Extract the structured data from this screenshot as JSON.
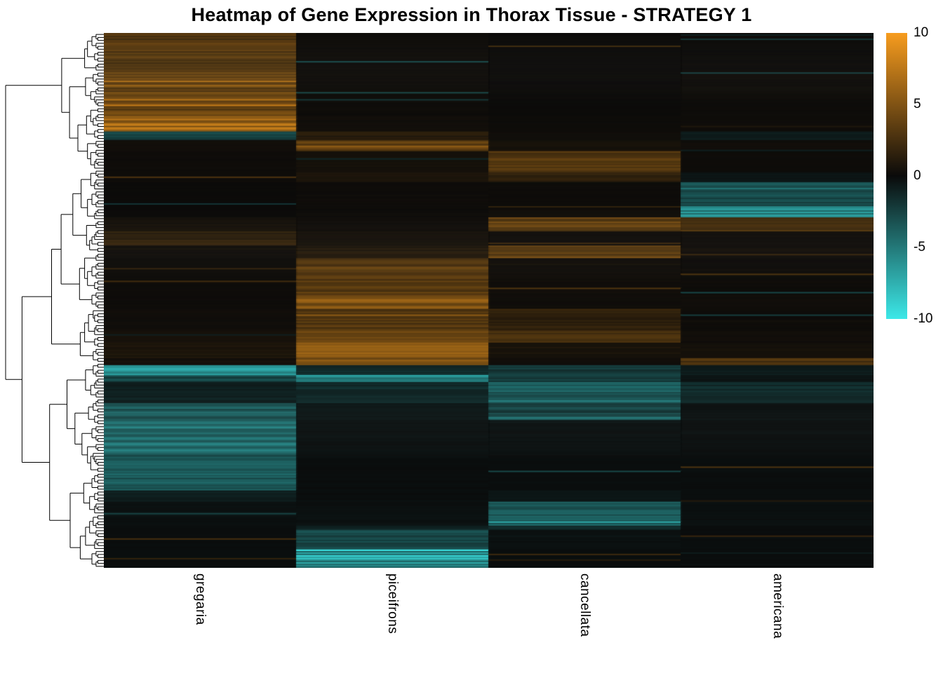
{
  "title": "Heatmap of Gene Expression in Thorax Tissue - STRATEGY 1",
  "colorbar": {
    "ticks": [
      "10",
      "5",
      "0",
      "-5",
      "-10"
    ],
    "tick_values": [
      10,
      5,
      0,
      -5,
      -10
    ],
    "max_color": "#F79C1E",
    "mid_color": "#0a0a0a",
    "min_color": "#3CE8E8"
  },
  "chart_data": {
    "type": "heatmap",
    "title": "Heatmap of Gene Expression in Thorax Tissue - STRATEGY 1",
    "categories": [
      "gregaria",
      "piceifrons",
      "cancellata",
      "americana"
    ],
    "row_axis": "genes (unlabeled, hierarchically clustered with left dendrogram)",
    "value_range": [
      -10,
      10
    ],
    "legend_position": "right",
    "colormap": {
      "negative": "#3CE8E8",
      "zero": "#0a0a0a",
      "positive": "#F79C1E"
    },
    "bands": [
      {
        "y0": 0.0,
        "y1": 0.07,
        "values": [
          3.0,
          0.2,
          0.1,
          0.1
        ]
      },
      {
        "y0": 0.07,
        "y1": 0.155,
        "values": [
          3.8,
          0.2,
          0.1,
          0.2
        ]
      },
      {
        "y0": 0.155,
        "y1": 0.185,
        "values": [
          6.5,
          0.3,
          0.2,
          0.2
        ]
      },
      {
        "y0": 0.185,
        "y1": 0.201,
        "values": [
          -2.5,
          1.2,
          0.3,
          -0.8
        ]
      },
      {
        "y0": 0.201,
        "y1": 0.22,
        "values": [
          0.3,
          3.5,
          0.5,
          0.3
        ]
      },
      {
        "y0": 0.22,
        "y1": 0.26,
        "values": [
          0.2,
          0.5,
          3.0,
          0.2
        ]
      },
      {
        "y0": 0.26,
        "y1": 0.28,
        "values": [
          0.2,
          0.8,
          1.5,
          -0.5
        ]
      },
      {
        "y0": 0.28,
        "y1": 0.325,
        "values": [
          0.1,
          0.2,
          0.2,
          -3.0
        ]
      },
      {
        "y0": 0.325,
        "y1": 0.345,
        "values": [
          0.1,
          0.2,
          0.3,
          -6.0
        ]
      },
      {
        "y0": 0.345,
        "y1": 0.372,
        "values": [
          0.5,
          0.3,
          3.5,
          2.5
        ]
      },
      {
        "y0": 0.372,
        "y1": 0.398,
        "values": [
          1.5,
          0.5,
          0.3,
          0.3
        ]
      },
      {
        "y0": 0.398,
        "y1": 0.42,
        "values": [
          0.3,
          1.0,
          3.8,
          0.3
        ]
      },
      {
        "y0": 0.42,
        "y1": 0.49,
        "values": [
          0.2,
          3.2,
          0.3,
          0.2
        ]
      },
      {
        "y0": 0.49,
        "y1": 0.515,
        "values": [
          0.2,
          4.8,
          0.3,
          0.3
        ]
      },
      {
        "y0": 0.515,
        "y1": 0.555,
        "values": [
          0.3,
          3.0,
          1.5,
          0.2
        ]
      },
      {
        "y0": 0.555,
        "y1": 0.58,
        "values": [
          0.5,
          3.5,
          2.8,
          0.3
        ]
      },
      {
        "y0": 0.58,
        "y1": 0.607,
        "values": [
          0.8,
          5.0,
          0.5,
          0.5
        ]
      },
      {
        "y0": 0.607,
        "y1": 0.62,
        "values": [
          0.5,
          4.5,
          0.3,
          2.8
        ]
      },
      {
        "y0": 0.62,
        "y1": 0.64,
        "values": [
          -7.0,
          -1.5,
          -2.0,
          -0.8
        ]
      },
      {
        "y0": 0.64,
        "y1": 0.653,
        "values": [
          -3.0,
          -6.0,
          -2.5,
          -0.5
        ]
      },
      {
        "y0": 0.653,
        "y1": 0.692,
        "values": [
          -1.0,
          -1.5,
          -3.5,
          -1.5
        ]
      },
      {
        "y0": 0.692,
        "y1": 0.725,
        "values": [
          -3.5,
          -0.5,
          -2.5,
          -0.3
        ]
      },
      {
        "y0": 0.725,
        "y1": 0.79,
        "values": [
          -4.5,
          -0.3,
          -0.3,
          -0.2
        ]
      },
      {
        "y0": 0.79,
        "y1": 0.856,
        "values": [
          -3.5,
          -0.2,
          -0.2,
          -0.2
        ]
      },
      {
        "y0": 0.856,
        "y1": 0.876,
        "values": [
          -1.0,
          -0.2,
          -0.5,
          -0.2
        ]
      },
      {
        "y0": 0.876,
        "y1": 0.921,
        "values": [
          -0.3,
          -0.3,
          -3.5,
          -0.3
        ]
      },
      {
        "y0": 0.921,
        "y1": 0.928,
        "values": [
          -0.2,
          -1.0,
          -1.5,
          -0.2
        ]
      },
      {
        "y0": 0.928,
        "y1": 0.967,
        "values": [
          -0.2,
          -3.0,
          -0.3,
          -0.2
        ]
      },
      {
        "y0": 0.967,
        "y1": 1.0,
        "values": [
          -0.2,
          -5.5,
          -0.2,
          -0.2
        ]
      }
    ]
  }
}
